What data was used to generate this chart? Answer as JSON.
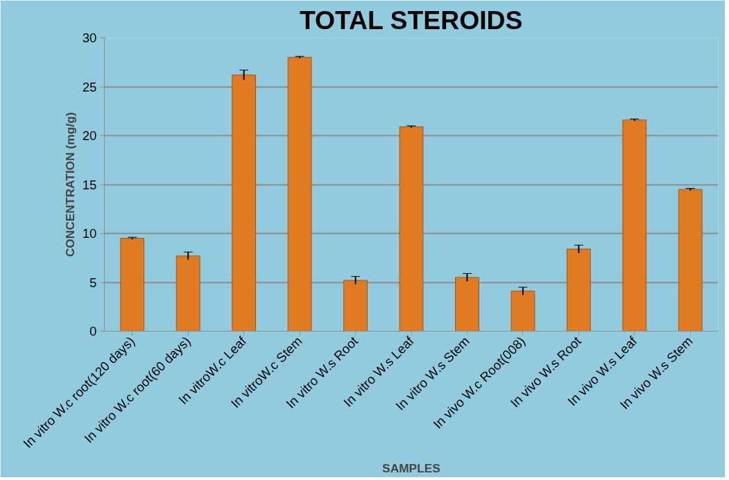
{
  "chart_data": {
    "type": "bar",
    "title": "TOTAL STEROIDS",
    "xlabel": "SAMPLES",
    "ylabel": "CONCENTRATION (mg/g)",
    "categories": [
      "In vitro W.c root(120 days)",
      "In vitro W.c root(60 days)",
      "In vitroW.c Leaf",
      "In vitroW.c Stem",
      "In vitro W.s Root",
      "In vitro W.s Leaf",
      "In vitro W.s Stem",
      "In vivo W.c Root(008)",
      "In vivo W.s Root",
      "In vivo W.s Leaf",
      "In vivo W.s Stem"
    ],
    "values": [
      9.5,
      7.7,
      26.2,
      28.0,
      5.2,
      20.9,
      5.5,
      4.1,
      8.4,
      21.6,
      14.5
    ],
    "errors": [
      0.1,
      0.4,
      0.5,
      0.1,
      0.4,
      0.1,
      0.4,
      0.4,
      0.4,
      0.1,
      0.1
    ],
    "color": "#e07b24",
    "ylim": [
      0,
      30
    ],
    "yticks": [
      0,
      5,
      10,
      15,
      20,
      25,
      30
    ],
    "grid": "y"
  }
}
